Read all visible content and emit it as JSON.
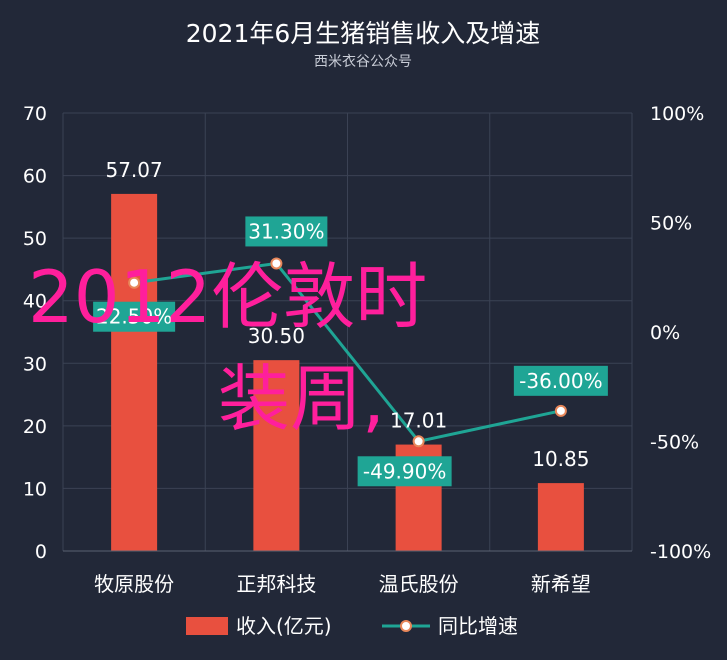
{
  "chart_data": {
    "type": "bar",
    "title": "2021年6月生猪销售收入及增速",
    "subtitle": "西米衣谷公众号",
    "categories": [
      "牧原股份",
      "正邦科技",
      "温氏股份",
      "新希望"
    ],
    "series": [
      {
        "name": "收入(亿元)",
        "type": "bar",
        "axis": "left",
        "color": "#e8503f",
        "values": [
          57.07,
          30.5,
          17.01,
          10.85
        ],
        "labels": [
          "57.07",
          "30.50",
          "17.01",
          "10.85"
        ]
      },
      {
        "name": "同比增速",
        "type": "line",
        "axis": "right",
        "color": "#1fa595",
        "values": [
          22.5,
          31.3,
          -49.9,
          -36.0
        ],
        "labels": [
          "22.50%",
          "31.30%",
          "-49.90%",
          "-36.00%"
        ]
      }
    ],
    "y_left": {
      "ylim": [
        0,
        70
      ],
      "ticks": [
        "0",
        "10",
        "20",
        "30",
        "40",
        "50",
        "60",
        "70"
      ]
    },
    "y_right": {
      "ylim": [
        -100,
        100
      ],
      "ticks": [
        "-100%",
        "-50%",
        "0%",
        "50%",
        "100%"
      ]
    },
    "grid": true,
    "legend": "bottom"
  },
  "watermark": {
    "lines": [
      "2012伦敦时",
      "装周,"
    ]
  }
}
